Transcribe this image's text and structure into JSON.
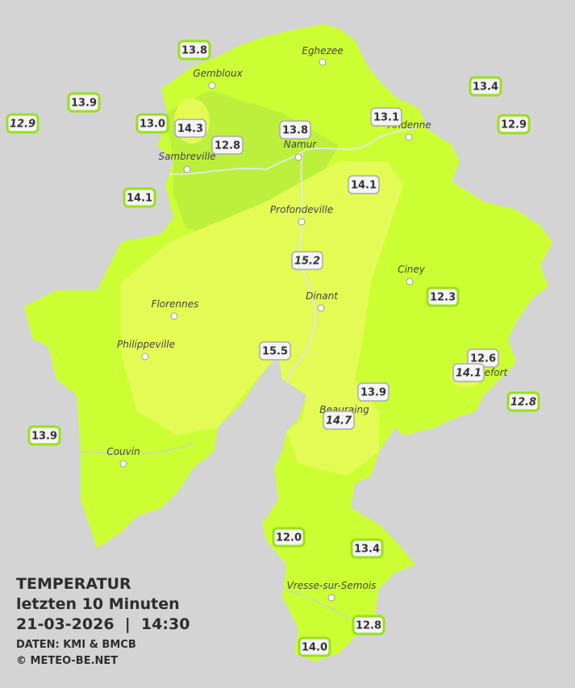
{
  "legend": {
    "title": "TEMPERATUR",
    "subtitle": "letzten 10 Minuten",
    "datetime": "21-03-2026  |  14:30",
    "source": "DATEN: KMI & BMCB",
    "copyright": "© METEO-BE.NET"
  },
  "cities": [
    "Eghezee",
    "Gembloux",
    "Andenne",
    "Namur",
    "Sambreville",
    "Profondeville",
    "Ciney",
    "Dinant",
    "Florennes",
    "Philippeville",
    "Rochefort",
    "Beauraing",
    "Couvin",
    "Vresse-sur-Semois"
  ],
  "stations": [
    {
      "label": "13.8",
      "italic": false
    },
    {
      "label": "13.9",
      "italic": false
    },
    {
      "label": "12.9",
      "italic": true
    },
    {
      "label": "13.0",
      "italic": false
    },
    {
      "label": "14.3",
      "italic": false
    },
    {
      "label": "12.8",
      "italic": false
    },
    {
      "label": "13.8",
      "italic": false
    },
    {
      "label": "13.1",
      "italic": false
    },
    {
      "label": "13.4",
      "italic": false
    },
    {
      "label": "12.9",
      "italic": false
    },
    {
      "label": "14.1",
      "italic": false
    },
    {
      "label": "14.1",
      "italic": false
    },
    {
      "label": "15.2",
      "italic": true
    },
    {
      "label": "12.3",
      "italic": false
    },
    {
      "label": "15.5",
      "italic": false
    },
    {
      "label": "12.6",
      "italic": false
    },
    {
      "label": "14.1",
      "italic": true
    },
    {
      "label": "13.9",
      "italic": false
    },
    {
      "label": "12.8",
      "italic": true
    },
    {
      "label": "14.7",
      "italic": true
    },
    {
      "label": "13.9",
      "italic": false
    },
    {
      "label": "12.0",
      "italic": false
    },
    {
      "label": "13.4",
      "italic": false
    },
    {
      "label": "12.8",
      "italic": false
    },
    {
      "label": "14.0",
      "italic": false
    }
  ]
}
